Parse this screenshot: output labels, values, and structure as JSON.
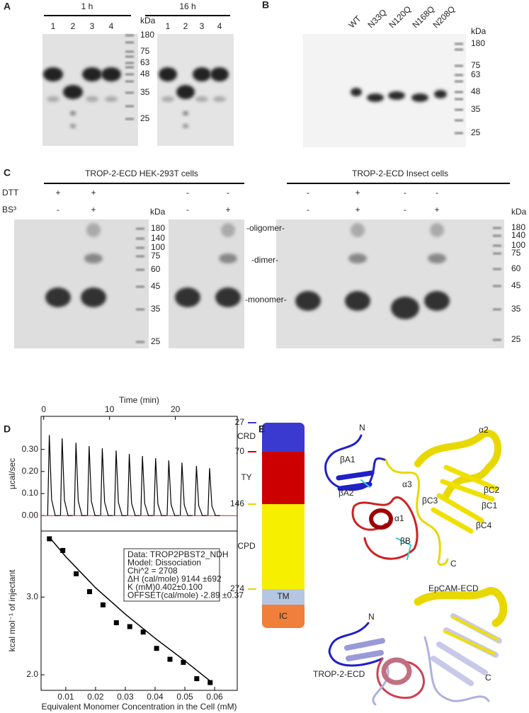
{
  "panel_a": {
    "label": "A",
    "groups": [
      "1 h",
      "16 h"
    ],
    "lanes_1h": [
      "1",
      "2",
      "3",
      "4"
    ],
    "lanes_16h": [
      "1",
      "2",
      "3",
      "4"
    ],
    "unit": "kDa",
    "markers": [
      180,
      75,
      63,
      48,
      35,
      25
    ]
  },
  "panel_b": {
    "label": "B",
    "lanes": [
      "WT",
      "N33Q",
      "N120Q",
      "N168Q",
      "N208Q"
    ],
    "unit": "kDa",
    "markers": [
      180,
      75,
      63,
      48,
      35,
      25
    ]
  },
  "panel_c": {
    "label": "C",
    "groups": [
      "TROP-2-ECD HEK-293T cells",
      "TROP-2-ECD Insect cells"
    ],
    "rows": [
      "DTT",
      "BS³"
    ],
    "dtt": [
      "+",
      "+",
      "-",
      "-",
      "-",
      "+",
      "-",
      "-"
    ],
    "bs3": [
      "-",
      "+",
      "-",
      "+",
      "-",
      "+",
      "-",
      "+"
    ],
    "unit_left": "kDa",
    "unit_right": "kDa",
    "markers_left": [
      180,
      140,
      100,
      75,
      60,
      45,
      35,
      25
    ],
    "markers_right": [
      180,
      140,
      100,
      75,
      60,
      45,
      35,
      25
    ],
    "annotations": [
      "-oligomer-",
      "-dimer-",
      "-monomer-"
    ]
  },
  "panel_d": {
    "label": "D"
  },
  "chart_data": [
    {
      "type": "injection-peaks",
      "x_label": "Time (min)",
      "y_label": "µcal/sec",
      "x": [
        0.85,
        2.8,
        4.9,
        6.9,
        8.9,
        11,
        13,
        15,
        17,
        19,
        21,
        23.2,
        25.2
      ],
      "values": [
        0.365,
        0.35,
        0.33,
        0.315,
        0.305,
        0.295,
        0.28,
        0.27,
        0.26,
        0.25,
        0.24,
        0.225,
        0.215
      ],
      "color": "#000000",
      "xlim": [
        -0.4,
        29.4
      ],
      "xticks": [
        0,
        10,
        20
      ],
      "ylim": [
        -0.07,
        0.45
      ],
      "yticks": [
        {
          "value": 0,
          "label": "0.00"
        },
        {
          "value": 0.1,
          "label": "0.10"
        },
        {
          "value": 0.2,
          "label": "0.20"
        },
        {
          "value": 0.3,
          "label": "0.30"
        }
      ]
    },
    {
      "type": "scatter-fit",
      "x_label": "Equivalent Monomer Concentration in the Cell (mM)",
      "y_label": "kcal mol⁻¹ of injectant",
      "x": [
        0.0045,
        0.009,
        0.0135,
        0.018,
        0.0225,
        0.027,
        0.0315,
        0.036,
        0.0405,
        0.045,
        0.0495,
        0.054,
        0.0585
      ],
      "values": [
        3.75,
        3.6,
        3.3,
        3.07,
        2.9,
        2.67,
        2.62,
        2.55,
        2.34,
        2.2,
        2.16,
        1.95,
        1.9
      ],
      "fit_x": [
        0.0045,
        0.01,
        0.02,
        0.03,
        0.04,
        0.05,
        0.0585
      ],
      "fit_values": [
        3.77,
        3.52,
        3.12,
        2.78,
        2.47,
        2.18,
        1.92
      ],
      "color": "#000000",
      "xlim": [
        0.0017,
        0.0676
      ],
      "xticks": [
        0.01,
        0.02,
        0.03,
        0.04,
        0.05,
        0.06
      ],
      "ylim": [
        1.8,
        3.85
      ],
      "yticks": [
        {
          "value": 2,
          "label": "2.0"
        },
        {
          "value": 3,
          "label": "3.0"
        }
      ],
      "fit_report": [
        "Data: TROP2PBST2_NDH",
        "Model: Dissociation",
        "Chi^2 = 2708",
        "ΔH (cal/mole)   9144   ±692",
        "K (mM)0.402±0.100",
        "OFFSET(cal/mole)   -2.89   ±0.37"
      ]
    }
  ],
  "panel_e": {
    "label": "E",
    "residues": [
      27,
      70,
      146,
      274
    ],
    "domains": [
      "CRD",
      "TY",
      "CPD"
    ],
    "bar_labels": [
      "TM",
      "IC"
    ],
    "upper_labels": [
      "N",
      "βA1",
      "βA2",
      "α3",
      "α1",
      "βB",
      "α2",
      "βC2",
      "βC3",
      "βC1",
      "βC4",
      "C"
    ],
    "lower_labels": [
      "N",
      "EpCAM-ECD",
      "TROP-2-ECD",
      "C"
    ]
  }
}
